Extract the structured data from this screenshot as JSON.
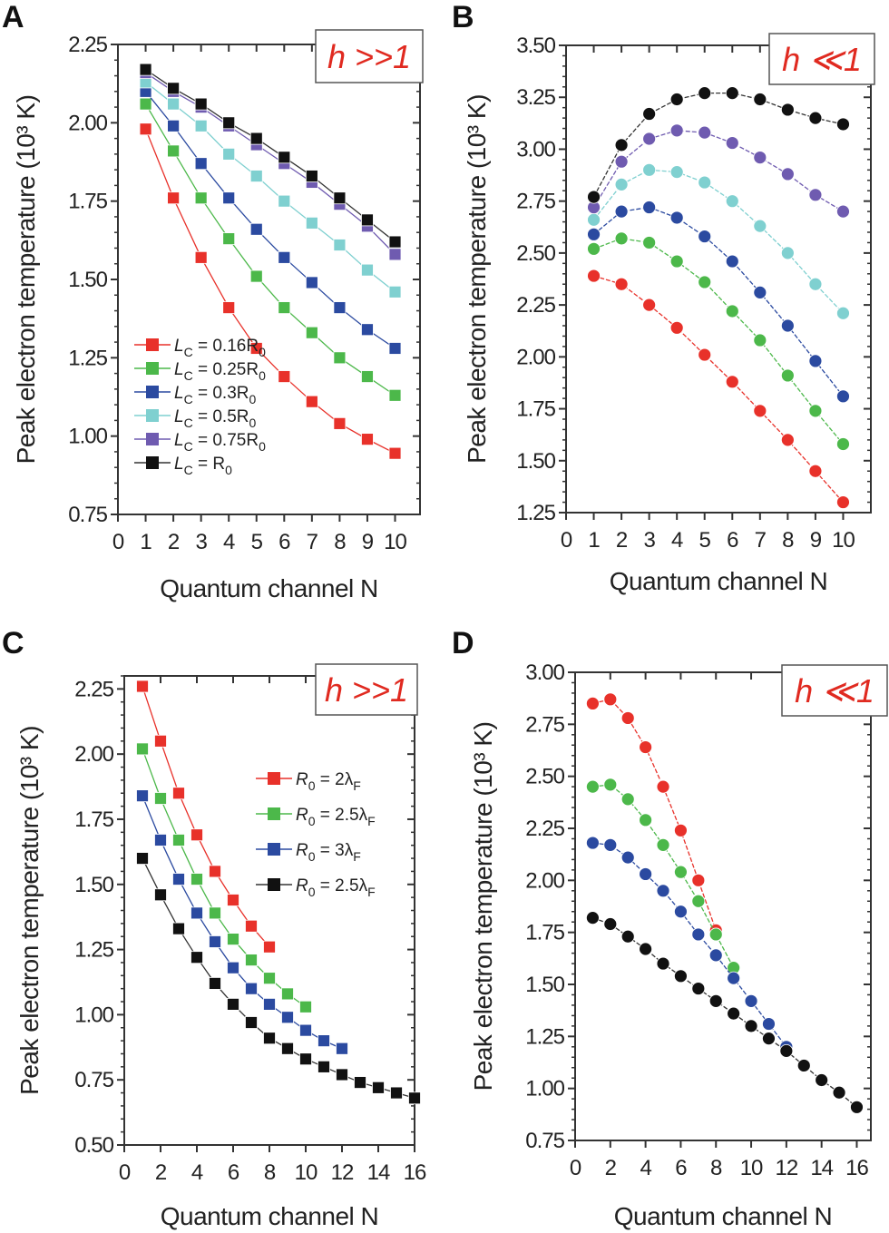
{
  "chart_data": [
    {
      "panel": "A",
      "type": "line",
      "marker": "square",
      "annotation": "h >>1",
      "xlabel": "Quantum channel N",
      "ylabel": "Peak electron temperature (10³ K)",
      "xlim": [
        0,
        10.9
      ],
      "ylim": [
        0.75,
        2.25
      ],
      "xticks": [
        0,
        1,
        2,
        3,
        4,
        5,
        6,
        7,
        8,
        9,
        10
      ],
      "yticks": [
        "0.75",
        "1.00",
        "1.25",
        "1.50",
        "1.75",
        "2.00",
        "2.25"
      ],
      "grid": false,
      "legend_position": "bottom-left",
      "x": [
        1,
        2,
        3,
        4,
        5,
        6,
        7,
        8,
        9,
        10
      ],
      "series": [
        {
          "name": "L_C = 0.16R_0",
          "color": "#e8312a",
          "values": [
            1.98,
            1.76,
            1.57,
            1.41,
            1.28,
            1.19,
            1.11,
            1.04,
            0.99,
            0.945
          ]
        },
        {
          "name": "L_C = 0.25R_0",
          "color": "#4cb84a",
          "values": [
            2.06,
            1.91,
            1.76,
            1.63,
            1.51,
            1.41,
            1.33,
            1.25,
            1.19,
            1.13
          ]
        },
        {
          "name": "L_C = 0.3R_0",
          "color": "#2b4aa0",
          "values": [
            2.1,
            1.99,
            1.87,
            1.76,
            1.66,
            1.57,
            1.49,
            1.41,
            1.34,
            1.28
          ]
        },
        {
          "name": "L_C = 0.5R_0",
          "color": "#7fd0d0",
          "values": [
            2.13,
            2.06,
            1.99,
            1.9,
            1.83,
            1.75,
            1.68,
            1.61,
            1.53,
            1.46
          ]
        },
        {
          "name": "L_C = 0.75R_0",
          "color": "#6f5bb0",
          "values": [
            2.16,
            2.1,
            2.05,
            1.99,
            1.93,
            1.87,
            1.81,
            1.74,
            1.67,
            1.58
          ]
        },
        {
          "name": "L_C = R_0",
          "color": "#111111",
          "values": [
            2.17,
            2.11,
            2.06,
            2.0,
            1.95,
            1.89,
            1.83,
            1.76,
            1.69,
            1.62
          ]
        }
      ]
    },
    {
      "panel": "B",
      "type": "line",
      "marker": "circle",
      "annotation": "h ≪1",
      "xlabel": "Quantum channel N",
      "ylabel": "Peak electron temperature (10³ K)",
      "xlim": [
        0,
        11
      ],
      "ylim": [
        1.25,
        3.5
      ],
      "xticks": [
        0,
        1,
        2,
        3,
        4,
        5,
        6,
        7,
        8,
        9,
        10
      ],
      "yticks": [
        "1.25",
        "1.50",
        "1.75",
        "2.00",
        "2.25",
        "2.50",
        "2.75",
        "3.00",
        "3.25",
        "3.50"
      ],
      "grid": false,
      "x": [
        1,
        2,
        3,
        4,
        5,
        6,
        7,
        8,
        9,
        10
      ],
      "series": [
        {
          "color": "#e8312a",
          "values": [
            2.39,
            2.35,
            2.25,
            2.14,
            2.01,
            1.88,
            1.74,
            1.6,
            1.45,
            1.3
          ]
        },
        {
          "color": "#4cb84a",
          "values": [
            2.52,
            2.57,
            2.55,
            2.46,
            2.36,
            2.22,
            2.08,
            1.91,
            1.74,
            1.58
          ]
        },
        {
          "color": "#2b4aa0",
          "values": [
            2.59,
            2.7,
            2.72,
            2.67,
            2.58,
            2.46,
            2.31,
            2.15,
            1.98,
            1.81
          ]
        },
        {
          "color": "#7fd0d0",
          "values": [
            2.66,
            2.83,
            2.9,
            2.89,
            2.84,
            2.75,
            2.63,
            2.5,
            2.35,
            2.21
          ]
        },
        {
          "color": "#6f5bb0",
          "values": [
            2.72,
            2.94,
            3.05,
            3.09,
            3.08,
            3.03,
            2.96,
            2.88,
            2.78,
            2.7
          ]
        },
        {
          "color": "#111111",
          "values": [
            2.77,
            3.02,
            3.17,
            3.24,
            3.27,
            3.27,
            3.24,
            3.19,
            3.15,
            3.12
          ]
        }
      ]
    },
    {
      "panel": "C",
      "type": "line",
      "marker": "square",
      "annotation": "h >>1",
      "xlabel": "Quantum channel N",
      "ylabel": "Peak electron temperature (10³ K)",
      "xlim": [
        0,
        16
      ],
      "ylim": [
        0.5,
        2.3
      ],
      "xticks": [
        0,
        2,
        4,
        6,
        8,
        10,
        12,
        14,
        16
      ],
      "yticks": [
        "0.50",
        "0.75",
        "1.00",
        "1.25",
        "1.50",
        "1.75",
        "2.00",
        "2.25"
      ],
      "grid": false,
      "legend_position": "top-right",
      "series": [
        {
          "name": "R_0 = 2λ_F",
          "color": "#e8312a",
          "x": [
            1,
            2,
            3,
            4,
            5,
            6,
            7,
            8
          ],
          "values": [
            2.26,
            2.05,
            1.85,
            1.69,
            1.55,
            1.44,
            1.34,
            1.26
          ]
        },
        {
          "name": "R_0 = 2.5λ_F",
          "color": "#4cb84a",
          "x": [
            1,
            2,
            3,
            4,
            5,
            6,
            7,
            8,
            9,
            10
          ],
          "values": [
            2.02,
            1.83,
            1.67,
            1.52,
            1.39,
            1.29,
            1.21,
            1.14,
            1.08,
            1.03
          ]
        },
        {
          "name": "R_0 = 3λ_F",
          "color": "#2b4aa0",
          "x": [
            1,
            2,
            3,
            4,
            5,
            6,
            7,
            8,
            9,
            10,
            11,
            12
          ],
          "values": [
            1.84,
            1.67,
            1.52,
            1.39,
            1.28,
            1.18,
            1.1,
            1.04,
            0.99,
            0.94,
            0.9,
            0.87
          ]
        },
        {
          "name": "R_0 = 2.5λ_F",
          "color": "#111111",
          "x": [
            1,
            2,
            3,
            4,
            5,
            6,
            7,
            8,
            9,
            10,
            11,
            12,
            13,
            14,
            15,
            16
          ],
          "values": [
            1.6,
            1.46,
            1.33,
            1.22,
            1.12,
            1.04,
            0.97,
            0.91,
            0.87,
            0.83,
            0.8,
            0.77,
            0.74,
            0.72,
            0.7,
            0.68
          ]
        }
      ]
    },
    {
      "panel": "D",
      "type": "line",
      "marker": "circle",
      "annotation": "h ≪1",
      "xlabel": "Quantum channel N",
      "ylabel": "Peak electron temperature (10³ K)",
      "xlim": [
        0,
        16.8
      ],
      "ylim": [
        0.75,
        3.0
      ],
      "xticks": [
        0,
        2,
        4,
        6,
        8,
        10,
        12,
        14,
        16
      ],
      "yticks": [
        "0.75",
        "1.00",
        "1.25",
        "1.50",
        "1.75",
        "2.00",
        "2.25",
        "2.50",
        "2.75",
        "3.00"
      ],
      "grid": false,
      "series": [
        {
          "color": "#e8312a",
          "x": [
            1,
            2,
            3,
            4,
            5,
            6,
            7,
            8
          ],
          "values": [
            2.85,
            2.87,
            2.78,
            2.64,
            2.45,
            2.24,
            2.0,
            1.76
          ]
        },
        {
          "color": "#4cb84a",
          "x": [
            1,
            2,
            3,
            4,
            5,
            6,
            7,
            8,
            9
          ],
          "values": [
            2.45,
            2.46,
            2.39,
            2.29,
            2.17,
            2.04,
            1.9,
            1.74,
            1.58
          ]
        },
        {
          "color": "#2b4aa0",
          "x": [
            1,
            2,
            3,
            4,
            5,
            6,
            7,
            8,
            9,
            10,
            11,
            12
          ],
          "values": [
            2.18,
            2.17,
            2.11,
            2.03,
            1.95,
            1.85,
            1.74,
            1.64,
            1.53,
            1.42,
            1.31,
            1.2
          ]
        },
        {
          "color": "#111111",
          "x": [
            1,
            2,
            3,
            4,
            5,
            6,
            7,
            8,
            9,
            10,
            11,
            12,
            13,
            14,
            15,
            16
          ],
          "values": [
            1.82,
            1.79,
            1.73,
            1.67,
            1.6,
            1.54,
            1.48,
            1.42,
            1.36,
            1.3,
            1.24,
            1.18,
            1.11,
            1.04,
            0.98,
            0.91
          ]
        }
      ]
    }
  ]
}
